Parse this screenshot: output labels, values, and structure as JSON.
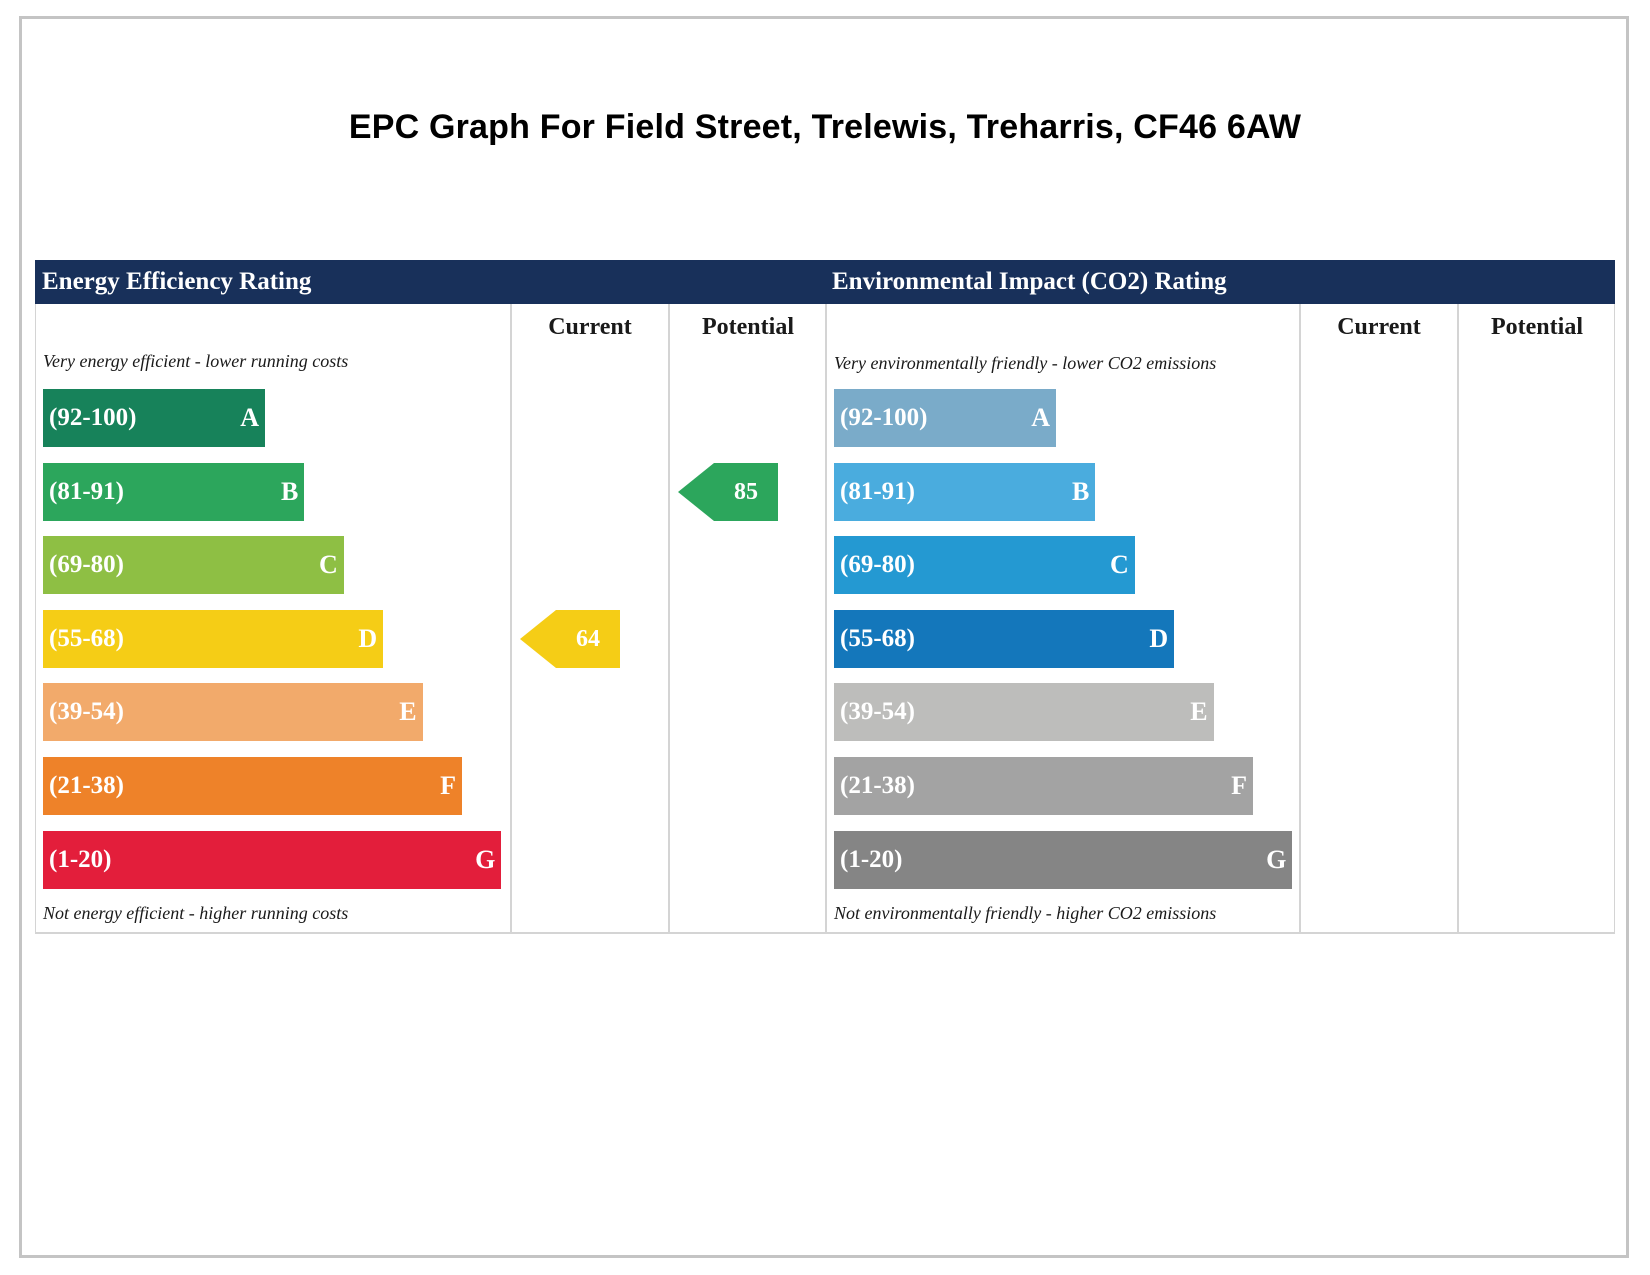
{
  "title": "EPC Graph For Field Street, Trelewis, Treharris, CF46 6AW",
  "chart_data": [
    {
      "type": "bar",
      "title": "Energy Efficiency Rating",
      "column_headers": [
        "Current",
        "Potential"
      ],
      "top_note": "Very energy efficient - lower running costs",
      "bottom_note": "Not energy efficient - higher running costs",
      "categories": [
        "A",
        "B",
        "C",
        "D",
        "E",
        "F",
        "G"
      ],
      "bands": [
        {
          "letter": "A",
          "range": "(92-100)",
          "color": "#17825a"
        },
        {
          "letter": "B",
          "range": "(81-91)",
          "color": "#2ca65c"
        },
        {
          "letter": "C",
          "range": "(69-80)",
          "color": "#8ebf44"
        },
        {
          "letter": "D",
          "range": "(55-68)",
          "color": "#f5cd16"
        },
        {
          "letter": "E",
          "range": "(39-54)",
          "color": "#f2aa6b"
        },
        {
          "letter": "F",
          "range": "(21-38)",
          "color": "#ee8229"
        },
        {
          "letter": "G",
          "range": "(1-20)",
          "color": "#e31e3b"
        }
      ],
      "current": {
        "value": 64,
        "band": "D",
        "color": "#f5cd16"
      },
      "potential": {
        "value": 85,
        "band": "B",
        "color": "#2ca65c"
      }
    },
    {
      "type": "bar",
      "title": "Environmental Impact (CO2) Rating",
      "column_headers": [
        "Current",
        "Potential"
      ],
      "top_note": "Very environmentally friendly - lower CO2 emissions",
      "bottom_note": "Not environmentally friendly - higher CO2 emissions",
      "categories": [
        "A",
        "B",
        "C",
        "D",
        "E",
        "F",
        "G"
      ],
      "bands": [
        {
          "letter": "A",
          "range": "(92-100)",
          "color": "#7aabc9"
        },
        {
          "letter": "B",
          "range": "(81-91)",
          "color": "#4aacde"
        },
        {
          "letter": "C",
          "range": "(69-80)",
          "color": "#2499d2"
        },
        {
          "letter": "D",
          "range": "(55-68)",
          "color": "#1477bb"
        },
        {
          "letter": "E",
          "range": "(39-54)",
          "color": "#bdbdbb"
        },
        {
          "letter": "F",
          "range": "(21-38)",
          "color": "#a3a3a3"
        },
        {
          "letter": "G",
          "range": "(1-20)",
          "color": "#858585"
        }
      ]
    }
  ]
}
